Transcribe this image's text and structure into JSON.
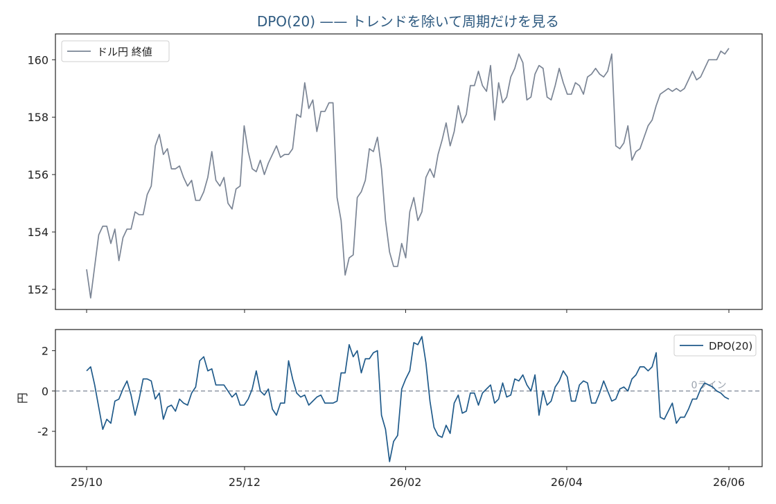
{
  "title": "DPO(20) —— トレンドを除いて周期だけを見る",
  "colors": {
    "price": "#7a8494",
    "dpo": "#1f5a8a",
    "zero": "#6b7788",
    "title": "#2e5a80"
  },
  "x_tick_labels": [
    "25/10",
    "25/12",
    "26/02",
    "26/04",
    "26/06"
  ],
  "chart_data": [
    {
      "type": "line",
      "legend": {
        "entries": [
          "ドル円 終値"
        ],
        "position": "top-left"
      },
      "ylim": [
        151.3,
        160.9
      ],
      "yticks": [
        152,
        154,
        156,
        158,
        160
      ],
      "grid": false,
      "series": [
        {
          "name": "ドル円 終値",
          "values": [
            152.7,
            151.7,
            152.8,
            153.9,
            154.2,
            154.2,
            153.6,
            154.1,
            153.0,
            153.8,
            154.1,
            154.1,
            154.7,
            154.6,
            154.6,
            155.3,
            155.6,
            157.0,
            157.4,
            156.7,
            156.9,
            156.2,
            156.2,
            156.3,
            155.9,
            155.6,
            155.8,
            155.1,
            155.1,
            155.4,
            155.9,
            156.8,
            155.8,
            155.6,
            155.9,
            155.0,
            154.8,
            155.5,
            155.6,
            157.7,
            156.8,
            156.2,
            156.1,
            156.5,
            156.0,
            156.4,
            156.7,
            157.0,
            156.6,
            156.7,
            156.7,
            156.9,
            158.1,
            158.0,
            159.2,
            158.3,
            158.6,
            157.5,
            158.2,
            158.2,
            158.5,
            158.5,
            155.2,
            154.4,
            152.5,
            153.1,
            153.2,
            155.2,
            155.4,
            155.8,
            156.9,
            156.8,
            157.3,
            156.2,
            154.4,
            153.3,
            152.8,
            152.8,
            153.6,
            153.1,
            154.7,
            155.2,
            154.4,
            154.7,
            155.9,
            156.2,
            155.9,
            156.7,
            157.2,
            157.8,
            157.0,
            157.5,
            158.4,
            157.8,
            158.1,
            159.1,
            159.1,
            159.6,
            159.1,
            158.9,
            159.8,
            157.9,
            159.2,
            158.5,
            158.7,
            159.4,
            159.7,
            160.2,
            159.9,
            158.6,
            158.7,
            159.5,
            159.8,
            159.7,
            158.7,
            158.6,
            159.1,
            159.7,
            159.2,
            158.8,
            158.8,
            159.2,
            159.1,
            158.8,
            159.4,
            159.5,
            159.7,
            159.5,
            159.4,
            159.6,
            160.2,
            157.0,
            156.9,
            157.1,
            157.7,
            156.5,
            156.8,
            156.9,
            157.3,
            157.7,
            157.9,
            158.4,
            158.8,
            158.9,
            159.0,
            158.9,
            159.0,
            158.9,
            159.0,
            159.3,
            159.6,
            159.3,
            159.4,
            159.7,
            160.0,
            160.0,
            160.0,
            160.3,
            160.2,
            160.4
          ]
        }
      ]
    },
    {
      "type": "line",
      "ylabel": "円",
      "legend": {
        "entries": [
          "DPO(20)"
        ],
        "position": "top-right"
      },
      "ylim": [
        -3.75,
        3.05
      ],
      "yticks": [
        -2,
        0,
        2
      ],
      "ytick_labels": [
        "-2",
        "0",
        "2"
      ],
      "grid": false,
      "reference_line": {
        "y": 0,
        "label": "0ライン",
        "style": "dashed"
      },
      "series": [
        {
          "name": "DPO(20)",
          "values": [
            1.0,
            1.2,
            0.3,
            -0.8,
            -1.9,
            -1.4,
            -1.6,
            -0.5,
            -0.4,
            0.1,
            0.5,
            -0.2,
            -1.2,
            -0.4,
            0.6,
            0.6,
            0.5,
            -0.4,
            -0.1,
            -1.4,
            -0.8,
            -0.7,
            -1.0,
            -0.4,
            -0.6,
            -0.7,
            -0.1,
            0.2,
            1.5,
            1.7,
            1.0,
            1.1,
            0.3,
            0.3,
            0.3,
            0.0,
            -0.3,
            -0.1,
            -0.7,
            -0.7,
            -0.4,
            0.1,
            1.0,
            0.0,
            -0.2,
            0.1,
            -0.9,
            -1.2,
            -0.6,
            -0.6,
            1.5,
            0.6,
            -0.1,
            -0.3,
            -0.2,
            -0.7,
            -0.5,
            -0.3,
            -0.2,
            -0.6,
            -0.6,
            -0.6,
            -0.5,
            0.9,
            0.9,
            2.3,
            1.7,
            2.0,
            0.9,
            1.6,
            1.6,
            1.9,
            2.0,
            -1.2,
            -1.9,
            -3.5,
            -2.5,
            -2.2,
            0.1,
            0.6,
            1.0,
            2.4,
            2.3,
            2.7,
            1.4,
            -0.5,
            -1.8,
            -2.2,
            -2.3,
            -1.7,
            -2.1,
            -0.6,
            -0.2,
            -1.1,
            -1.0,
            -0.1,
            -0.1,
            -0.7,
            -0.1,
            0.1,
            0.3,
            -0.6,
            -0.4,
            0.4,
            -0.3,
            -0.2,
            0.6,
            0.5,
            0.8,
            0.3,
            0.0,
            0.8,
            -1.2,
            0.0,
            -0.7,
            -0.5,
            0.2,
            0.5,
            1.0,
            0.7,
            -0.5,
            -0.5,
            0.3,
            0.5,
            0.4,
            -0.6,
            -0.6,
            -0.1,
            0.5,
            0.0,
            -0.5,
            -0.4,
            0.1,
            0.2,
            0.0,
            0.6,
            0.8,
            1.2,
            1.2,
            1.0,
            1.2,
            1.9,
            -1.3,
            -1.4,
            -1.0,
            -0.6,
            -1.6,
            -1.3,
            -1.3,
            -0.9,
            -0.4,
            -0.4,
            0.1,
            0.4,
            0.3,
            0.2,
            0.0,
            -0.1,
            -0.3,
            -0.4
          ]
        }
      ]
    }
  ]
}
